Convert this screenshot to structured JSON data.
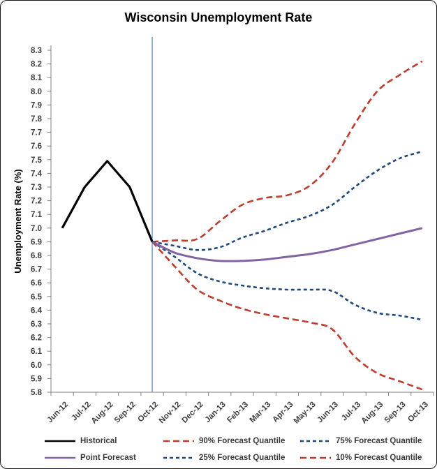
{
  "title": "Wisconsin Unemployment Rate",
  "y_axis_title": "Unemployment Rate (%)",
  "colors": {
    "historical": "#000000",
    "point_forecast": "#8064A2",
    "outer_quantile_red": "#C13B2C",
    "inner_quantile_navy": "#1F497D",
    "forecast_origin_line": "#74A3D8",
    "axis_line": "#808080",
    "tick_text": "#3F3F3F"
  },
  "chart_data": {
    "type": "line",
    "title": "Wisconsin Unemployment Rate",
    "xlabel": "",
    "ylabel": "Unemployment Rate (%)",
    "ylim": [
      5.8,
      8.3
    ],
    "y_tick_step": 0.1,
    "grid": false,
    "legend_position": "bottom",
    "categories": [
      "Jun-12",
      "Jul-12",
      "Aug-12",
      "Sep-12",
      "Oct-12",
      "Nov-12",
      "Dec-12",
      "Jan-13",
      "Feb-13",
      "Mar-13",
      "Apr-13",
      "May-13",
      "Jun-13",
      "Jul-13",
      "Aug-13",
      "Sep-13",
      "Oct-13"
    ],
    "forecast_start_category": "Oct-12",
    "series": [
      {
        "name": "90% Forecast Quantile",
        "color": "#C13B2C",
        "width": 2.6,
        "dash": "9 5",
        "smooth": true,
        "x_start_index": 4,
        "values": [
          6.9,
          6.91,
          6.92,
          7.05,
          7.17,
          7.22,
          7.24,
          7.31,
          7.48,
          7.76,
          8.0,
          8.12,
          8.22
        ]
      },
      {
        "name": "75% Forecast Quantile",
        "color": "#1F497D",
        "width": 2.6,
        "dash": "5 4",
        "smooth": true,
        "x_start_index": 4,
        "values": [
          6.9,
          6.87,
          6.84,
          6.86,
          6.93,
          6.98,
          7.04,
          7.09,
          7.17,
          7.3,
          7.42,
          7.51,
          7.56
        ]
      },
      {
        "name": "25% Forecast Quantile",
        "color": "#1F497D",
        "width": 2.6,
        "dash": "5 4",
        "smooth": true,
        "x_start_index": 4,
        "values": [
          6.9,
          6.79,
          6.67,
          6.61,
          6.58,
          6.56,
          6.55,
          6.55,
          6.54,
          6.44,
          6.38,
          6.36,
          6.33
        ]
      },
      {
        "name": "10% Forecast Quantile",
        "color": "#C13B2C",
        "width": 2.6,
        "dash": "9 5",
        "smooth": true,
        "x_start_index": 4,
        "values": [
          6.9,
          6.72,
          6.55,
          6.47,
          6.41,
          6.37,
          6.34,
          6.31,
          6.26,
          6.06,
          5.94,
          5.88,
          5.82
        ]
      },
      {
        "name": "Point Forecast",
        "color": "#8064A2",
        "width": 3,
        "dash": null,
        "smooth": true,
        "x_start_index": 4,
        "values": [
          6.9,
          6.82,
          6.78,
          6.76,
          6.76,
          6.77,
          6.79,
          6.81,
          6.84,
          6.88,
          6.92,
          6.96,
          7.0
        ]
      },
      {
        "name": "Historical",
        "color": "#000000",
        "width": 3.2,
        "dash": null,
        "smooth": false,
        "x_start_index": 0,
        "values": [
          7.0,
          7.3,
          7.49,
          7.3,
          6.9
        ]
      }
    ],
    "legend_order": [
      "Historical",
      "90% Forecast Quantile",
      "75% Forecast Quantile",
      "Point Forecast",
      "25% Forecast Quantile",
      "10% Forecast Quantile"
    ]
  }
}
